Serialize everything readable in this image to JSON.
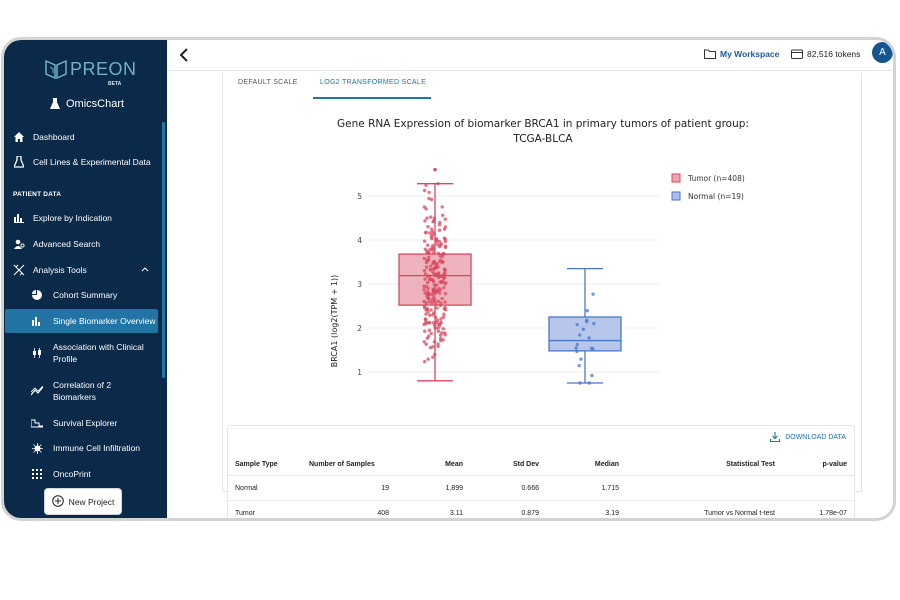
{
  "app": {
    "logo_text": "PREON",
    "logo_badge": "BETA",
    "product": "OmicsChart"
  },
  "sidebar": {
    "top_items": [
      {
        "label": "Dashboard",
        "icon": "home-icon"
      },
      {
        "label": "Cell Lines & Experimental Data",
        "icon": "flask-icon"
      }
    ],
    "section_title": "PATIENT DATA",
    "items": [
      {
        "label": "Explore by Indication",
        "icon": "bar-chart-icon"
      },
      {
        "label": "Advanced Search",
        "icon": "user-search-icon"
      },
      {
        "label": "Analysis Tools",
        "icon": "dna-icon"
      }
    ],
    "sub_items": [
      {
        "label": "Cohort Summary",
        "icon": "pie-chart-icon"
      },
      {
        "label": "Single Biomarker Overview",
        "icon": "bar-chart-icon",
        "active": true
      },
      {
        "label": "Association with Clinical Profile",
        "line1": "Association with Clinical",
        "line2": "Profile",
        "icon": "boxplot-icon"
      },
      {
        "label": "Correlation of 2 Biomarkers",
        "line1": "Correlation of 2",
        "line2": "Biomarkers",
        "icon": "trend-icon"
      },
      {
        "label": "Survival Explorer",
        "icon": "survival-curve-icon"
      },
      {
        "label": "Immune Cell Infiltration",
        "icon": "virus-icon"
      },
      {
        "label": "OncoPrint",
        "icon": "grid-icon"
      }
    ],
    "new_project_label": "New Project"
  },
  "header": {
    "workspace_label": "My Workspace",
    "tokens_label": "82,516 tokens",
    "avatar_initial": "A"
  },
  "tabs": [
    {
      "label": "DEFAULT SCALE",
      "active": false
    },
    {
      "label": "LOG2 TRANSFORMED SCALE",
      "active": true
    }
  ],
  "chart_data": {
    "type": "box",
    "title_line1": "Gene RNA Expression of biomarker BRCA1 in primary tumors of patient group:",
    "title_line2": "TCGA-BLCA",
    "ylabel": "BRCA1 (log2(TPM + 1))",
    "yticks": [
      1,
      2,
      3,
      4,
      5
    ],
    "categories": [
      "Tumor",
      "Normal"
    ],
    "legend": [
      "Tumor (n=408)",
      "Normal (n=19)"
    ],
    "series": [
      {
        "name": "Tumor",
        "color": "#d9485f",
        "fill": "#eba6b2",
        "min": 0.8,
        "q1": 2.52,
        "median": 3.19,
        "q3": 3.68,
        "max": 5.28,
        "n": 408,
        "outlier_max": 5.6
      },
      {
        "name": "Normal",
        "color": "#4a78c8",
        "fill": "#a9bde8",
        "min": 0.75,
        "q1": 1.48,
        "median": 1.715,
        "q3": 2.25,
        "max": 3.35,
        "n": 19
      }
    ]
  },
  "table": {
    "download_label": "DOWNLOAD DATA",
    "headers": [
      "Sample Type",
      "Number of Samples",
      "Mean",
      "Std Dev",
      "Median",
      "Statistical Test",
      "p-value"
    ],
    "rows": [
      [
        "Normal",
        "19",
        "1.899",
        "0.666",
        "1.715",
        "",
        ""
      ],
      [
        "Tumor",
        "408",
        "3.11",
        "0.879",
        "3.19",
        "Tumor vs Normal t-test",
        "1.78e-07"
      ]
    ]
  }
}
